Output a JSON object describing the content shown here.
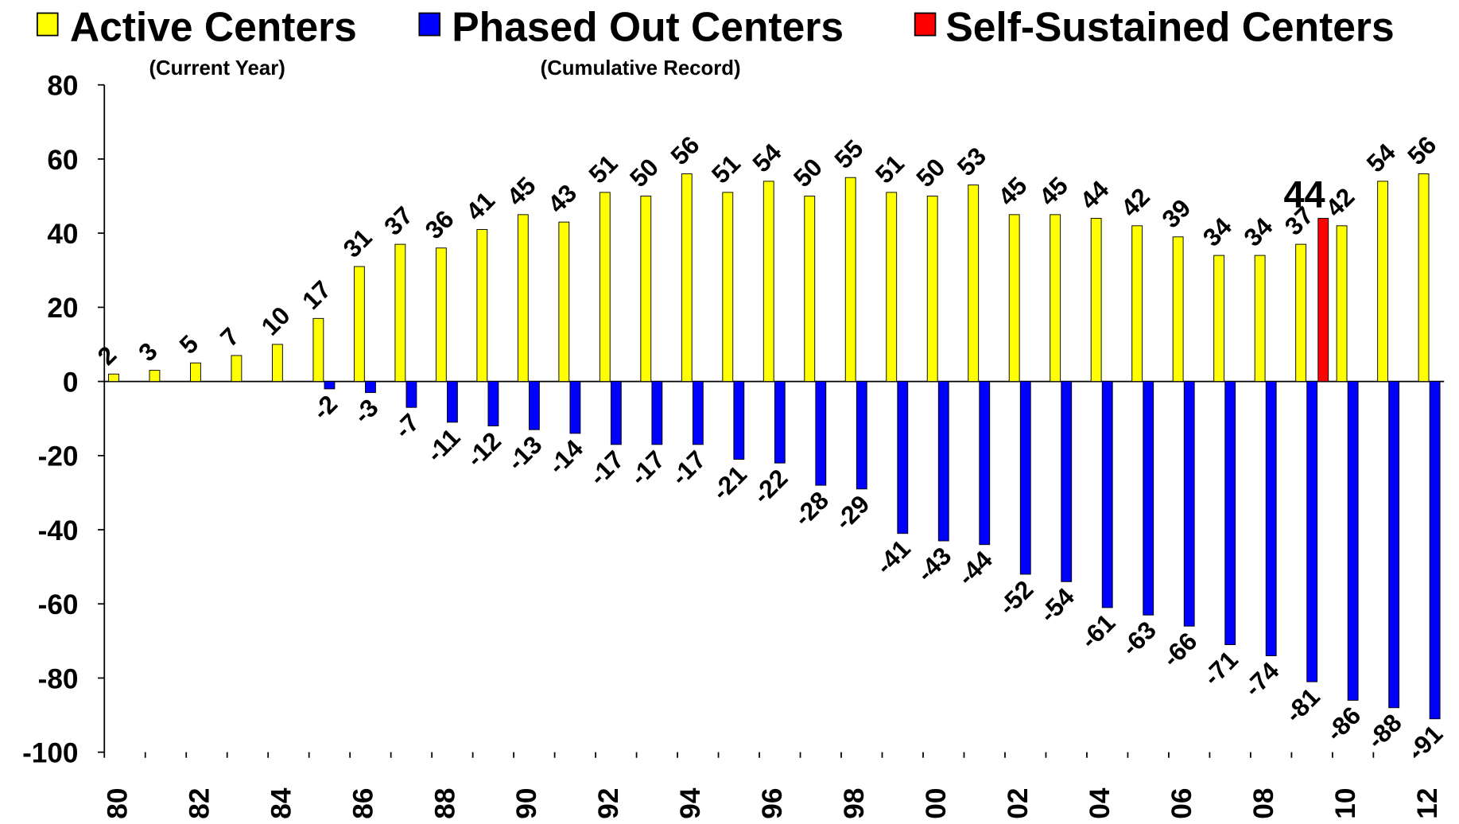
{
  "chart_data": {
    "type": "bar",
    "categories": [
      "80",
      null,
      "82",
      null,
      "84",
      null,
      "86",
      null,
      "88",
      null,
      "90",
      null,
      "92",
      null,
      "94",
      null,
      "96",
      null,
      "98",
      null,
      "00",
      null,
      "02",
      null,
      "04",
      null,
      "06",
      null,
      "08",
      null,
      "10",
      null,
      "12"
    ],
    "series": [
      {
        "name": "Active Centers",
        "note": "(Current Year)",
        "color": "#ffff00",
        "label_rotated": true,
        "values": [
          2,
          3,
          5,
          7,
          10,
          17,
          31,
          37,
          36,
          41,
          45,
          43,
          51,
          50,
          56,
          51,
          54,
          50,
          55,
          51,
          50,
          53,
          45,
          45,
          44,
          42,
          39,
          34,
          34,
          37,
          42,
          54,
          56
        ]
      },
      {
        "name": "Phased Out Centers",
        "note": "(Cumulative Record)",
        "color": "#0000ff",
        "label_rotated": true,
        "values": [
          null,
          null,
          null,
          null,
          null,
          -2,
          -3,
          -7,
          -11,
          -12,
          -13,
          -14,
          -17,
          -17,
          -17,
          -21,
          -22,
          -28,
          -29,
          -41,
          -43,
          -44,
          -52,
          -54,
          -61,
          -63,
          -66,
          -71,
          -74,
          -81,
          -86,
          -88,
          -91
        ]
      },
      {
        "name": "Self-Sustained Centers",
        "color": "#ff0000",
        "label_rotated": false,
        "values": [
          null,
          null,
          null,
          null,
          null,
          null,
          null,
          null,
          null,
          null,
          null,
          null,
          null,
          null,
          null,
          null,
          null,
          null,
          null,
          null,
          null,
          null,
          null,
          null,
          null,
          null,
          null,
          null,
          null,
          44,
          null,
          null,
          null
        ]
      }
    ],
    "ylim": [
      -100,
      80
    ],
    "yticks": [
      -100,
      -80,
      -60,
      -40,
      -20,
      0,
      20,
      40,
      60,
      80
    ]
  }
}
